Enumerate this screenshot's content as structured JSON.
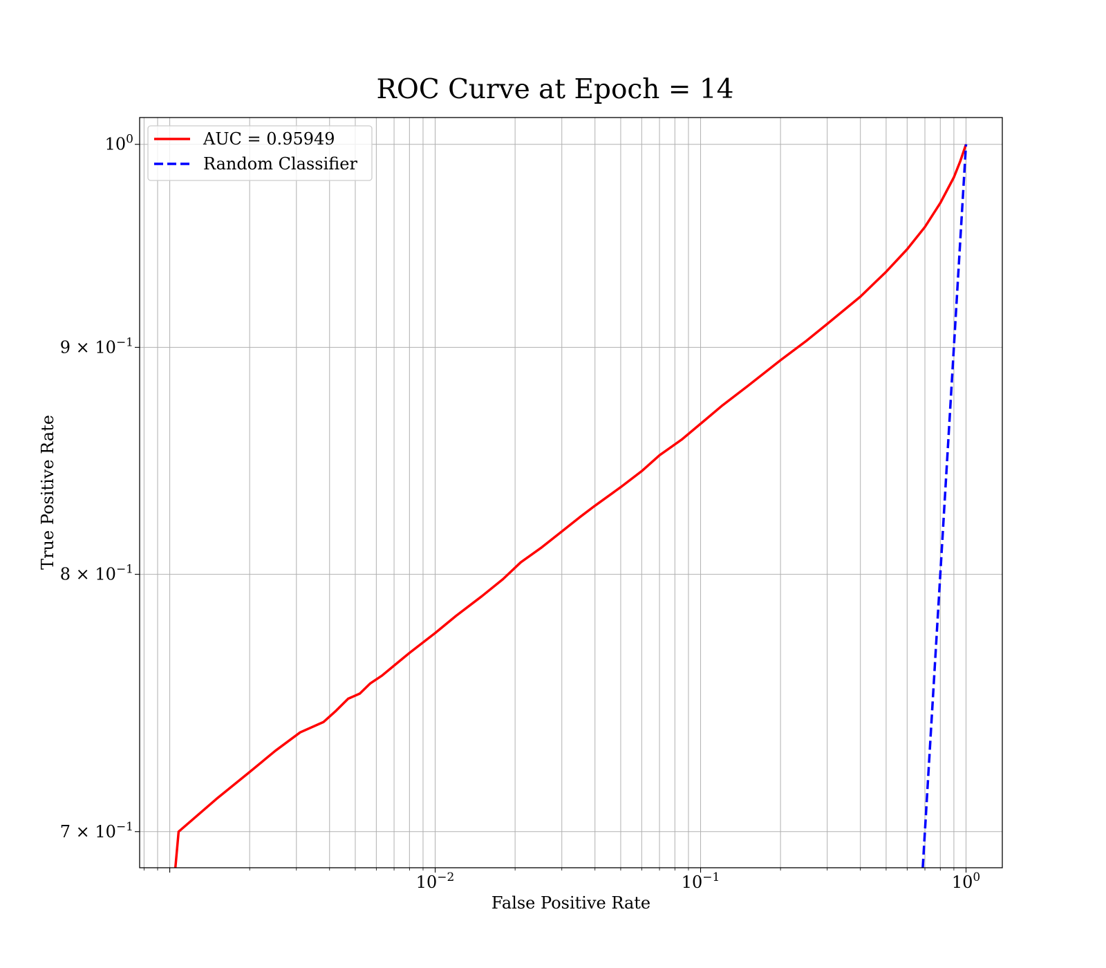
{
  "chart_data": {
    "type": "line",
    "title": "ROC Curve at Epoch = 14",
    "xlabel": "False Positive Rate",
    "ylabel": "True Positive Rate",
    "xscale": "log",
    "yscale": "log",
    "xlim": [
      0.00077,
      1.37
    ],
    "ylim": [
      0.687,
      1.014
    ],
    "grid": true,
    "legend_position": "top-left",
    "x_major_ticks": [
      {
        "value": 0.01,
        "base": "10",
        "exp": "−2"
      },
      {
        "value": 0.1,
        "base": "10",
        "exp": "−1"
      },
      {
        "value": 1,
        "base": "10",
        "exp": "0"
      }
    ],
    "y_ticks": [
      {
        "value": 1.0,
        "base": "10",
        "exp": "0",
        "mult": ""
      },
      {
        "value": 0.9,
        "base": "10",
        "exp": "−1",
        "mult": "9 × "
      },
      {
        "value": 0.8,
        "base": "10",
        "exp": "−1",
        "mult": "8 × "
      },
      {
        "value": 0.7,
        "base": "10",
        "exp": "−1",
        "mult": "7 × "
      }
    ],
    "series": [
      {
        "name": "AUC = 0.95949",
        "color": "#ff0000",
        "style": "solid",
        "points": [
          [
            0.00105,
            0.687
          ],
          [
            0.00108,
            0.7
          ],
          [
            0.0015,
            0.712
          ],
          [
            0.002,
            0.722
          ],
          [
            0.0025,
            0.73
          ],
          [
            0.0031,
            0.737
          ],
          [
            0.0038,
            0.741
          ],
          [
            0.0042,
            0.745
          ],
          [
            0.0047,
            0.75
          ],
          [
            0.0052,
            0.752
          ],
          [
            0.0057,
            0.756
          ],
          [
            0.0063,
            0.759
          ],
          [
            0.007,
            0.763
          ],
          [
            0.008,
            0.768
          ],
          [
            0.01,
            0.776
          ],
          [
            0.012,
            0.783
          ],
          [
            0.015,
            0.791
          ],
          [
            0.018,
            0.798
          ],
          [
            0.021,
            0.805
          ],
          [
            0.025,
            0.811
          ],
          [
            0.03,
            0.818
          ],
          [
            0.035,
            0.824
          ],
          [
            0.04,
            0.829
          ],
          [
            0.05,
            0.837
          ],
          [
            0.06,
            0.844
          ],
          [
            0.07,
            0.851
          ],
          [
            0.085,
            0.858
          ],
          [
            0.1,
            0.865
          ],
          [
            0.12,
            0.873
          ],
          [
            0.15,
            0.882
          ],
          [
            0.2,
            0.894
          ],
          [
            0.25,
            0.903
          ],
          [
            0.3,
            0.911
          ],
          [
            0.4,
            0.924
          ],
          [
            0.5,
            0.936
          ],
          [
            0.6,
            0.947
          ],
          [
            0.7,
            0.958
          ],
          [
            0.8,
            0.97
          ],
          [
            0.9,
            0.983
          ],
          [
            0.95,
            0.991
          ],
          [
            1.0,
            1.0
          ]
        ]
      },
      {
        "name": "Random Classifier",
        "color": "#0000ff",
        "style": "dashed",
        "points": [
          [
            0.687,
            0.687
          ],
          [
            1.0,
            1.0
          ]
        ]
      }
    ]
  }
}
